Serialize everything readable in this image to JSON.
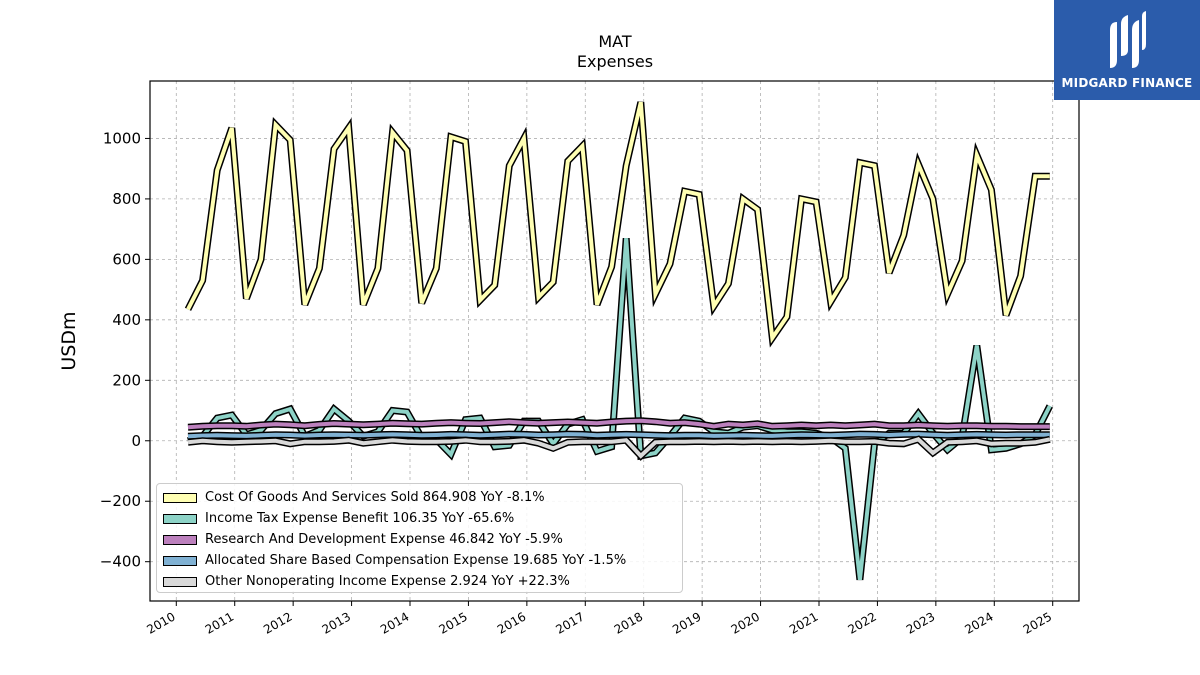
{
  "chart_data": {
    "type": "line",
    "title": "MAT",
    "subtitle": "Expenses",
    "ylabel": "USDm",
    "xlabel": "",
    "ylim": [
      -530,
      1190
    ],
    "xlim": [
      2009.55,
      2025.45
    ],
    "yticks": [
      -400,
      -200,
      0,
      200,
      400,
      600,
      800,
      1000
    ],
    "ytick_labels": [
      "−400",
      "−200",
      "0",
      "200",
      "400",
      "600",
      "800",
      "1000"
    ],
    "xticks": [
      2010,
      2011,
      2012,
      2013,
      2014,
      2015,
      2016,
      2017,
      2018,
      2019,
      2020,
      2021,
      2022,
      2023,
      2024,
      2025
    ],
    "xtick_labels": [
      "2010",
      "2011",
      "2012",
      "2013",
      "2014",
      "2015",
      "2016",
      "2017",
      "2018",
      "2019",
      "2020",
      "2021",
      "2022",
      "2023",
      "2024",
      "2025"
    ],
    "grid": true,
    "legend_position": "lower-left",
    "x": [
      2010.2,
      2010.45,
      2010.7,
      2010.95,
      2011.2,
      2011.45,
      2011.7,
      2011.95,
      2012.2,
      2012.45,
      2012.7,
      2012.95,
      2013.2,
      2013.45,
      2013.7,
      2013.95,
      2014.2,
      2014.45,
      2014.7,
      2014.95,
      2015.2,
      2015.45,
      2015.7,
      2015.95,
      2016.2,
      2016.45,
      2016.7,
      2016.95,
      2017.2,
      2017.45,
      2017.7,
      2017.95,
      2018.2,
      2018.45,
      2018.7,
      2018.95,
      2019.2,
      2019.45,
      2019.7,
      2019.95,
      2020.2,
      2020.45,
      2020.7,
      2020.95,
      2021.2,
      2021.45,
      2021.7,
      2021.95,
      2022.2,
      2022.45,
      2022.7,
      2022.95,
      2023.2,
      2023.45,
      2023.7,
      2023.95,
      2024.2,
      2024.45,
      2024.7,
      2024.95
    ],
    "series": [
      {
        "name": "Cost Of Goods And Services Sold",
        "legend": "Cost Of Goods And Services Sold  864.908 YoY -8.1%",
        "color": "#ffffb3",
        "values": [
          435,
          530,
          895,
          1035,
          470,
          600,
          1045,
          995,
          450,
          570,
          965,
          1035,
          450,
          570,
          1020,
          960,
          455,
          570,
          1005,
          990,
          465,
          515,
          910,
          1000,
          475,
          525,
          925,
          975,
          450,
          575,
          910,
          1120,
          485,
          585,
          825,
          815,
          445,
          520,
          800,
          765,
          340,
          410,
          800,
          790,
          460,
          540,
          920,
          910,
          555,
          680,
          915,
          800,
          485,
          595,
          945,
          830,
          415,
          545,
          875,
          875
        ]
      },
      {
        "name": "Income Tax Expense Benefit",
        "legend": "Income Tax Expense Benefit  106.35 YoY -65.6%",
        "color": "#8dd3c7",
        "values": [
          0,
          15,
          75,
          85,
          20,
          35,
          90,
          105,
          15,
          35,
          105,
          65,
          15,
          30,
          100,
          95,
          10,
          5,
          -45,
          70,
          75,
          -20,
          -15,
          65,
          65,
          -10,
          55,
          70,
          -35,
          -20,
          670,
          -50,
          -40,
          15,
          75,
          65,
          30,
          25,
          45,
          50,
          35,
          30,
          30,
          25,
          10,
          -25,
          -460,
          -10,
          25,
          25,
          90,
          25,
          -30,
          10,
          315,
          -30,
          -25,
          -10,
          20,
          115
        ]
      },
      {
        "name": "Research And Development Expense",
        "legend": "Research And Development Expense  46.842 YoY -5.9%",
        "color": "#bc80bd",
        "values": [
          45,
          48,
          50,
          50,
          48,
          52,
          55,
          53,
          50,
          54,
          57,
          55,
          53,
          55,
          58,
          56,
          55,
          58,
          60,
          58,
          57,
          60,
          63,
          60,
          58,
          60,
          62,
          60,
          58,
          62,
          65,
          66,
          63,
          58,
          60,
          55,
          48,
          55,
          52,
          56,
          48,
          50,
          52,
          50,
          52,
          50,
          52,
          55,
          50,
          50,
          52,
          50,
          48,
          50,
          50,
          48,
          48,
          47,
          47,
          47
        ]
      },
      {
        "name": "Allocated Share Based Compensation Expense",
        "legend": "Allocated Share Based Compensation Expense  19.685 YoY -1.5%",
        "color": "#80b1d3",
        "values": [
          15,
          17,
          18,
          17,
          16,
          18,
          20,
          19,
          17,
          19,
          20,
          19,
          18,
          20,
          21,
          20,
          18,
          19,
          21,
          20,
          18,
          20,
          22,
          21,
          19,
          20,
          22,
          21,
          18,
          20,
          21,
          20,
          18,
          17,
          18,
          18,
          16,
          17,
          18,
          17,
          16,
          18,
          20,
          19,
          18,
          20,
          22,
          21,
          19,
          21,
          22,
          20,
          18,
          20,
          21,
          20,
          19,
          20,
          20,
          20
        ]
      },
      {
        "name": "Other Nonoperating Income Expense",
        "legend": "Other Nonoperating Income Expense  2.924 YoY +22.3%",
        "color": "#d9d9d9",
        "values": [
          -5,
          0,
          -3,
          -5,
          -3,
          -2,
          0,
          -10,
          -3,
          -3,
          -2,
          2,
          -8,
          -3,
          2,
          -2,
          -3,
          -3,
          -2,
          2,
          -3,
          -3,
          -2,
          2,
          -8,
          -25,
          -5,
          -3,
          -3,
          -3,
          2,
          -50,
          -5,
          -3,
          -3,
          -2,
          -3,
          -2,
          -3,
          -2,
          -3,
          -2,
          -3,
          -2,
          0,
          -3,
          -3,
          -2,
          -8,
          -10,
          5,
          -40,
          -5,
          -3,
          0,
          -10,
          -8,
          -8,
          -5,
          5
        ]
      }
    ]
  },
  "logo": {
    "text": "MIDGARD FINANCE",
    "icon": "midgard-logo-icon",
    "background": "#2b5cab"
  }
}
